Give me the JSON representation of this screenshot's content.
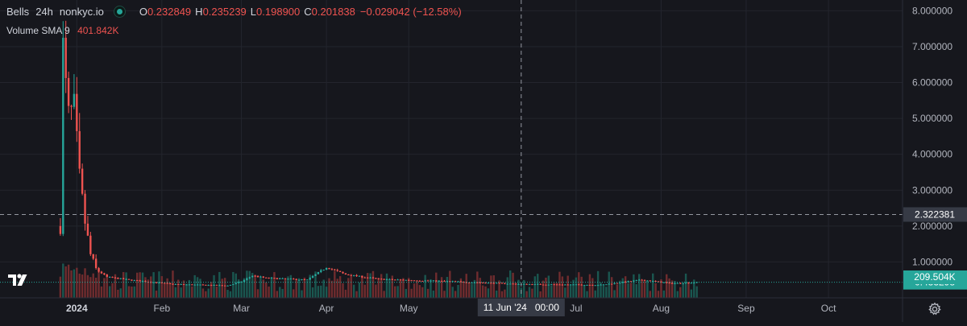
{
  "legend": {
    "symbol": "Bells",
    "interval": "24h",
    "exchange": "nonkyc.io",
    "open_label": "O",
    "open_value": "0.232849",
    "high_label": "H",
    "high_value": "0.235239",
    "low_label": "L",
    "low_value": "0.198900",
    "close_label": "C",
    "close_value": "0.201838",
    "change": "−0.029042 (−12.58%)"
  },
  "volume_legend": {
    "name": "Volume",
    "indicator": "SMA 9",
    "value": "401.842K"
  },
  "price_axis": {
    "ticks": [
      {
        "value": 8,
        "label": "8.000000"
      },
      {
        "value": 7,
        "label": "7.000000"
      },
      {
        "value": 6,
        "label": "6.000000"
      },
      {
        "value": 5,
        "label": "5.000000"
      },
      {
        "value": 4,
        "label": "4.000000"
      },
      {
        "value": 3,
        "label": "3.000000"
      },
      {
        "value": 2,
        "label": "2.000000"
      },
      {
        "value": 1,
        "label": "1.000000"
      }
    ],
    "crosshair_label": "2.322381",
    "last_price_label": "0.433298",
    "volume_label": "209.504K"
  },
  "time_axis": {
    "labels": [
      {
        "text": "2024",
        "date": "2024-01-01",
        "bold": true
      },
      {
        "text": "Feb",
        "date": "2024-02-01"
      },
      {
        "text": "Mar",
        "date": "2024-03-01"
      },
      {
        "text": "Apr",
        "date": "2024-04-01"
      },
      {
        "text": "May",
        "date": "2024-05-01"
      },
      {
        "text": "Jul",
        "date": "2024-07-01"
      },
      {
        "text": "Aug",
        "date": "2024-08-01"
      },
      {
        "text": "Sep",
        "date": "2024-09-01"
      },
      {
        "text": "Oct",
        "date": "2024-10-01"
      }
    ],
    "crosshair_label": "11 Jun '24   00:00"
  },
  "colors": {
    "background": "#16171d",
    "up": "#26a69a",
    "down": "#ef5350",
    "grid": "#23252d",
    "text": "#d1d4dc",
    "crosshair_label_bg": "#363a45"
  },
  "chart_data": {
    "type": "candlestick",
    "title": "Bells 24h nonkyc.io",
    "x_range": [
      "2023-12-04",
      "2024-10-28"
    ],
    "y_range": [
      0,
      8.3
    ],
    "grid": true,
    "crosshair": {
      "date": "2024-06-11",
      "price": 2.322381
    },
    "last_price": 0.433298,
    "last_volume_k": 209.504,
    "keypoints": [
      {
        "date": "2023-12-26",
        "price": 2.0
      },
      {
        "date": "2023-12-27",
        "price": 6.9
      },
      {
        "date": "2023-12-28",
        "price": 5.8
      },
      {
        "date": "2023-12-29",
        "price": 5.0
      },
      {
        "date": "2023-12-31",
        "price": 5.2
      },
      {
        "date": "2024-01-02",
        "price": 3.3
      },
      {
        "date": "2024-01-04",
        "price": 2.1
      },
      {
        "date": "2024-01-06",
        "price": 1.2
      },
      {
        "date": "2024-01-08",
        "price": 0.8
      },
      {
        "date": "2024-01-12",
        "price": 0.58
      },
      {
        "date": "2024-01-20",
        "price": 0.5
      },
      {
        "date": "2024-02-05",
        "price": 0.38
      },
      {
        "date": "2024-02-25",
        "price": 0.34
      },
      {
        "date": "2024-03-01",
        "price": 0.45
      },
      {
        "date": "2024-03-05",
        "price": 0.62
      },
      {
        "date": "2024-03-10",
        "price": 0.55
      },
      {
        "date": "2024-03-25",
        "price": 0.5
      },
      {
        "date": "2024-04-01",
        "price": 0.85
      },
      {
        "date": "2024-04-08",
        "price": 0.65
      },
      {
        "date": "2024-04-20",
        "price": 0.52
      },
      {
        "date": "2024-05-15",
        "price": 0.46
      },
      {
        "date": "2024-06-11",
        "price": 0.38
      },
      {
        "date": "2024-07-10",
        "price": 0.36
      },
      {
        "date": "2024-07-25",
        "price": 0.5
      },
      {
        "date": "2024-08-05",
        "price": 0.4
      },
      {
        "date": "2024-08-14",
        "price": 0.43
      }
    ]
  }
}
